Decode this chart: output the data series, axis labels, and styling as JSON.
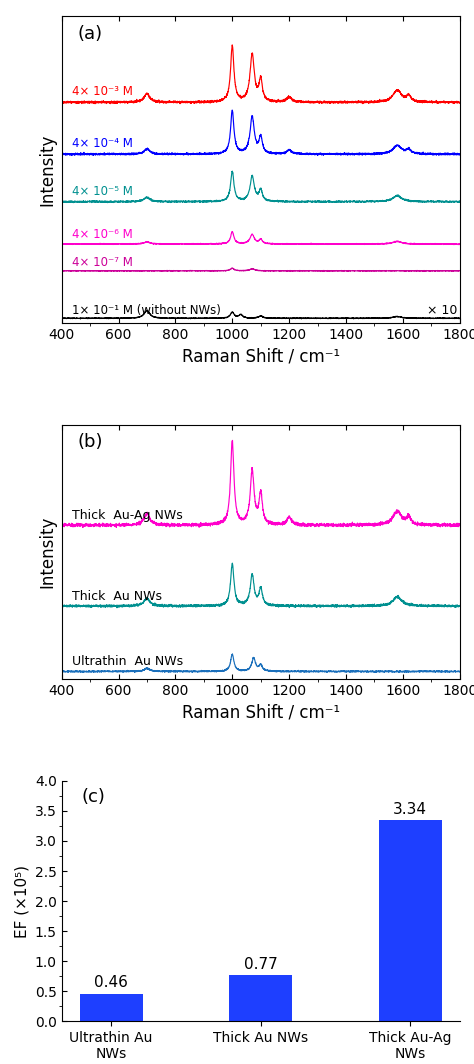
{
  "panel_a_label": "(a)",
  "panel_b_label": "(b)",
  "panel_c_label": "(c)",
  "xmin": 400,
  "xmax": 1800,
  "xticks": [
    400,
    600,
    800,
    1000,
    1200,
    1400,
    1600,
    1800
  ],
  "xlabel": "Raman Shift / cm⁻¹",
  "ylabel_ab": "Intensity",
  "ylabel_c": "EF (×10⁵)",
  "panel_a_labels": [
    "4× 10⁻³ M",
    "4× 10⁻⁴ M",
    "4× 10⁻⁵ M",
    "4× 10⁻⁶ M",
    "4× 10⁻⁷ M",
    "1× 10⁻¹ M (without NWs)"
  ],
  "panel_a_colors": [
    "#ff0000",
    "#0000ff",
    "#009090",
    "#ff00cc",
    "#cc0099",
    "#000000"
  ],
  "panel_b_labels": [
    "Thick  Au-Ag NWs",
    "Thick  Au NWs",
    "Ultrathin  Au NWs"
  ],
  "panel_b_colors": [
    "#ff00cc",
    "#009090",
    "#1a6fbb"
  ],
  "bar_categories": [
    "Ultrathin Au\nNWs",
    "Thick Au NWs",
    "Thick Au-Ag\nNWs"
  ],
  "bar_values": [
    0.46,
    0.77,
    3.34
  ],
  "bar_color": "#1e3fff",
  "bar_labels": [
    "0.46",
    "0.77",
    "3.34"
  ],
  "ylim_c": [
    0.0,
    4.0
  ],
  "yticks_c": [
    0.0,
    0.5,
    1.0,
    1.5,
    2.0,
    2.5,
    3.0,
    3.5,
    4.0
  ],
  "x10_annotation": "× 10"
}
